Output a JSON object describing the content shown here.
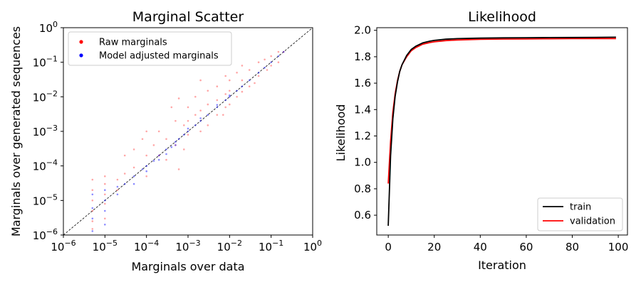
{
  "chart_data": [
    {
      "type": "scatter",
      "title": "Marginal Scatter",
      "xlabel": "Marginals over data",
      "ylabel": "Marginals over generated sequences",
      "xscale": "log",
      "yscale": "log",
      "xlim": [
        1e-06,
        1
      ],
      "ylim": [
        1e-06,
        1
      ],
      "xticks": [
        1e-06,
        1e-05,
        0.0001,
        0.001,
        0.01,
        0.1,
        1
      ],
      "yticks": [
        1e-06,
        1e-05,
        0.0001,
        0.001,
        0.01,
        0.1,
        1
      ],
      "tick_mantissa": "10",
      "tick_exponents": [
        "−6",
        "−5",
        "−4",
        "−3",
        "−2",
        "−1",
        "0"
      ],
      "legend_position": "top-left",
      "diagonal": "y = x (dashed)",
      "series": [
        {
          "name": "Raw marginals",
          "color": "#ff0000",
          "points": [
            [
              5e-06,
              2e-05
            ],
            [
              5e-06,
              1e-05
            ],
            [
              5e-06,
              5e-06
            ],
            [
              5e-06,
              2.5e-06
            ],
            [
              5e-06,
              1.5e-06
            ],
            [
              5e-06,
              4e-05
            ],
            [
              1e-05,
              5e-05
            ],
            [
              1e-05,
              3e-05
            ],
            [
              1e-05,
              1.5e-05
            ],
            [
              1e-05,
              8e-06
            ],
            [
              1e-05,
              3e-06
            ],
            [
              2e-05,
              4e-05
            ],
            [
              2e-05,
              2e-05
            ],
            [
              3e-05,
              6e-05
            ],
            [
              5e-05,
              0.0003
            ],
            [
              5e-05,
              9e-05
            ],
            [
              8e-05,
              0.0006
            ],
            [
              0.0001,
              0.0002
            ],
            [
              0.0001,
              5e-05
            ],
            [
              0.00015,
              0.0004
            ],
            [
              0.0002,
              0.001
            ],
            [
              0.0002,
              0.0002
            ],
            [
              0.0003,
              0.0006
            ],
            [
              0.0003,
              0.00015
            ],
            [
              0.0005,
              0.002
            ],
            [
              0.0005,
              0.0004
            ],
            [
              0.0008,
              0.0015
            ],
            [
              0.0008,
              0.0003
            ],
            [
              0.001,
              0.005
            ],
            [
              0.001,
              0.002
            ],
            [
              0.001,
              0.0008
            ],
            [
              0.0015,
              0.01
            ],
            [
              0.0015,
              0.003
            ],
            [
              0.002,
              0.004
            ],
            [
              0.002,
              0.001
            ],
            [
              0.003,
              0.015
            ],
            [
              0.003,
              0.006
            ],
            [
              0.003,
              0.0015
            ],
            [
              0.005,
              0.02
            ],
            [
              0.005,
              0.008
            ],
            [
              0.005,
              0.003
            ],
            [
              0.008,
              0.04
            ],
            [
              0.008,
              0.012
            ],
            [
              0.008,
              0.005
            ],
            [
              0.01,
              0.03
            ],
            [
              0.01,
              0.015
            ],
            [
              0.01,
              0.006
            ],
            [
              0.015,
              0.05
            ],
            [
              0.015,
              0.01
            ],
            [
              0.02,
              0.08
            ],
            [
              0.02,
              0.03
            ],
            [
              0.02,
              0.014
            ],
            [
              0.03,
              0.06
            ],
            [
              0.03,
              0.02
            ],
            [
              0.05,
              0.1
            ],
            [
              0.05,
              0.04
            ],
            [
              0.07,
              0.12
            ],
            [
              0.08,
              0.06
            ],
            [
              0.1,
              0.15
            ],
            [
              0.1,
              0.08
            ],
            [
              0.15,
              0.2
            ],
            [
              0.15,
              0.1
            ],
            [
              0.2,
              0.2
            ],
            [
              0.0004,
              0.005
            ],
            [
              0.0006,
              0.009
            ],
            [
              0.002,
              0.03
            ],
            [
              0.0001,
              0.001
            ],
            [
              3e-05,
              0.0002
            ],
            [
              0.007,
              0.003
            ],
            [
              0.04,
              0.025
            ],
            [
              0.0006,
              8e-05
            ]
          ]
        },
        {
          "name": "Model adjusted marginals",
          "color": "#0000ff",
          "points": [
            [
              5e-06,
              1.5e-05
            ],
            [
              5e-06,
              6e-06
            ],
            [
              5e-06,
              3e-06
            ],
            [
              5e-06,
              1.3e-06
            ],
            [
              1e-05,
              2e-05
            ],
            [
              1e-05,
              1e-05
            ],
            [
              1e-05,
              5e-06
            ],
            [
              1e-05,
              2e-06
            ],
            [
              2e-05,
              2.5e-05
            ],
            [
              2e-05,
              1.5e-05
            ],
            [
              3e-05,
              3e-05
            ],
            [
              5e-05,
              5e-05
            ],
            [
              5e-05,
              3e-05
            ],
            [
              8e-05,
              8e-05
            ],
            [
              0.0001,
              0.0001
            ],
            [
              0.0001,
              7e-05
            ],
            [
              0.00015,
              0.00014
            ],
            [
              0.0002,
              0.0002
            ],
            [
              0.0002,
              0.00015
            ],
            [
              0.0003,
              0.0003
            ],
            [
              0.0003,
              0.00022
            ],
            [
              0.0005,
              0.0005
            ],
            [
              0.0005,
              0.0004
            ],
            [
              0.0008,
              0.0008
            ],
            [
              0.001,
              0.001
            ],
            [
              0.001,
              0.0012
            ],
            [
              0.0015,
              0.0015
            ],
            [
              0.002,
              0.002
            ],
            [
              0.002,
              0.0024
            ],
            [
              0.003,
              0.003
            ],
            [
              0.005,
              0.005
            ],
            [
              0.005,
              0.0058
            ],
            [
              0.008,
              0.008
            ],
            [
              0.01,
              0.01
            ],
            [
              0.01,
              0.011
            ],
            [
              0.015,
              0.015
            ],
            [
              0.02,
              0.02
            ],
            [
              0.03,
              0.03
            ],
            [
              0.05,
              0.05
            ],
            [
              0.07,
              0.07
            ],
            [
              0.1,
              0.1
            ],
            [
              0.15,
              0.15
            ],
            [
              0.2,
              0.2
            ],
            [
              0.0004,
              0.00035
            ],
            [
              0.0006,
              0.0006
            ]
          ]
        }
      ]
    },
    {
      "type": "line",
      "title": "Likelihood",
      "xlabel": "Iteration",
      "ylabel": "Likelihood",
      "xlim": [
        -5,
        104
      ],
      "ylim": [
        0.45,
        2.02
      ],
      "xticks": [
        0,
        20,
        40,
        60,
        80,
        100
      ],
      "yticks": [
        0.6,
        0.8,
        1.0,
        1.2,
        1.4,
        1.6,
        1.8,
        2.0
      ],
      "ytick_labels": [
        "0.6",
        "0.8",
        "1.0",
        "1.2",
        "1.4",
        "1.6",
        "1.8",
        "2.0"
      ],
      "legend_position": "bottom-right",
      "series": [
        {
          "name": "train",
          "color": "#000000",
          "x": [
            0,
            1,
            2,
            3,
            4,
            5,
            6,
            8,
            10,
            12,
            15,
            18,
            20,
            25,
            30,
            40,
            50,
            60,
            70,
            80,
            90,
            99
          ],
          "y": [
            0.52,
            1.05,
            1.33,
            1.5,
            1.61,
            1.69,
            1.74,
            1.81,
            1.855,
            1.88,
            1.905,
            1.918,
            1.924,
            1.933,
            1.937,
            1.941,
            1.943,
            1.944,
            1.945,
            1.946,
            1.947,
            1.948
          ]
        },
        {
          "name": "validation",
          "color": "#ff0000",
          "x": [
            0,
            1,
            2,
            3,
            4,
            5,
            6,
            8,
            10,
            12,
            15,
            18,
            20,
            25,
            30,
            40,
            50,
            60,
            70,
            80,
            90,
            99
          ],
          "y": [
            0.84,
            1.16,
            1.38,
            1.52,
            1.62,
            1.69,
            1.74,
            1.8,
            1.845,
            1.87,
            1.895,
            1.907,
            1.913,
            1.922,
            1.927,
            1.932,
            1.934,
            1.935,
            1.936,
            1.937,
            1.938,
            1.938
          ]
        }
      ]
    }
  ]
}
